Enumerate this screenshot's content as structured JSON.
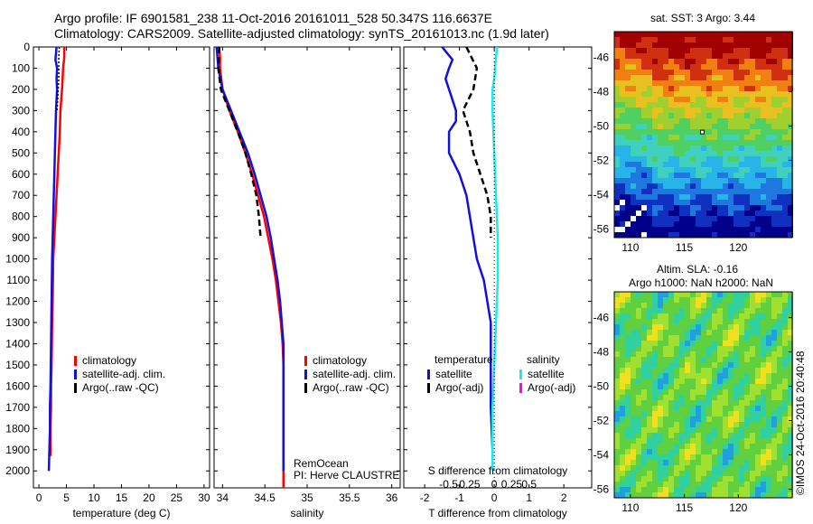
{
  "header": {
    "line1": "Argo profile: IF 6901581_238 11-Oct-2016 20161011_528 50.347S 116.6637E",
    "line2": "Climatology: CARS2009. Satellite-adjusted climatology: synTS_20161013.nc (1.9d later)"
  },
  "colors": {
    "climatology": "#ff0000",
    "satellite": "#0000ff",
    "argo": "#000000",
    "sal_sat": "#00e5e5",
    "sal_argo": "#ff00ff"
  },
  "chart_data": [
    {
      "type": "line",
      "id": "temperature",
      "xlabel": "temperature (deg C)",
      "ylabel": "",
      "xlim": [
        -1,
        31
      ],
      "ylim": [
        2080,
        0
      ],
      "xticks": [
        0,
        5,
        10,
        15,
        20,
        25,
        30
      ],
      "yticks": [
        0,
        100,
        200,
        300,
        400,
        500,
        600,
        700,
        800,
        900,
        1000,
        1100,
        1200,
        1300,
        1400,
        1500,
        1600,
        1700,
        1800,
        1900,
        2000
      ],
      "legend": [
        "climatology",
        "satellite-adj. clim.",
        "Argo(..raw -QC)"
      ],
      "series": [
        {
          "name": "climatology",
          "color": "red",
          "x": [
            4.6,
            4.6,
            4.4,
            4.2,
            3.9,
            3.8,
            3.6,
            3.4,
            3.2,
            3.0,
            2.8,
            2.6,
            2.5,
            2.4,
            2.3,
            2.2,
            2.2,
            2.1,
            2.1
          ],
          "y": [
            0,
            50,
            100,
            200,
            300,
            400,
            500,
            600,
            700,
            800,
            900,
            1000,
            1200,
            1300,
            1500,
            1600,
            1700,
            1800,
            1930
          ]
        },
        {
          "name": "satellite-adj. clim.",
          "color": "blue",
          "x": [
            3.2,
            3.0,
            3.3,
            3.2,
            3.3,
            3.1,
            3.0,
            2.9,
            2.8,
            2.7,
            2.6,
            2.5,
            2.4,
            2.3,
            2.2,
            2.1,
            2.0,
            2.0,
            1.9,
            1.8
          ],
          "y": [
            0,
            60,
            100,
            150,
            200,
            300,
            400,
            500,
            600,
            700,
            800,
            900,
            1000,
            1200,
            1400,
            1600,
            1700,
            1800,
            1900,
            2000
          ]
        },
        {
          "name": "Argo(..raw -QC)",
          "color": "black",
          "style": "dotted",
          "x": [
            3.7,
            3.6,
            3.6,
            3.4,
            3.3
          ],
          "y": [
            0,
            50,
            150,
            250,
            300
          ]
        }
      ]
    },
    {
      "type": "line",
      "id": "salinity",
      "xlabel": "salinity",
      "ylabel": "",
      "xlim": [
        33.9,
        36.1
      ],
      "ylim": [
        2080,
        0
      ],
      "xticks": [
        34,
        34.5,
        35,
        35.5,
        36
      ],
      "legend": [
        "climatology",
        "satellite-adj. clim.",
        "Argo(..raw -QC)"
      ],
      "annotation": [
        "RemOcean",
        "PI: Herve CLAUSTRE"
      ],
      "series": [
        {
          "name": "climatology",
          "color": "red",
          "x": [
            33.96,
            33.97,
            33.97,
            34.0,
            34.08,
            34.18,
            34.27,
            34.35,
            34.42,
            34.49,
            34.54,
            34.59,
            34.63,
            34.66,
            34.69,
            34.71,
            34.72,
            34.72,
            34.72,
            34.72
          ],
          "y": [
            0,
            50,
            100,
            200,
            300,
            400,
            500,
            600,
            700,
            800,
            900,
            1000,
            1100,
            1200,
            1300,
            1400,
            1500,
            1700,
            1900,
            2080
          ]
        },
        {
          "name": "satellite-adj. clim.",
          "color": "blue",
          "x": [
            33.93,
            33.94,
            33.95,
            34.0,
            34.1,
            34.2,
            34.3,
            34.38,
            34.45,
            34.52,
            34.57,
            34.61,
            34.65,
            34.68,
            34.7,
            34.72,
            34.72,
            34.72,
            34.72
          ],
          "y": [
            0,
            50,
            100,
            200,
            300,
            400,
            500,
            600,
            700,
            800,
            900,
            1000,
            1100,
            1200,
            1300,
            1400,
            1500,
            1700,
            2000
          ]
        },
        {
          "name": "Argo(..raw -QC)",
          "color": "black",
          "style": "dashed",
          "x": [
            33.96,
            33.95,
            33.98,
            34.08,
            34.18,
            34.27,
            34.34,
            34.4,
            34.43,
            34.45
          ],
          "y": [
            0,
            100,
            200,
            300,
            400,
            500,
            600,
            700,
            800,
            900
          ]
        }
      ]
    },
    {
      "type": "line",
      "id": "difference",
      "xlabel": "T difference from climatology",
      "xlabel2": "S difference from climatology",
      "xlim": [
        -2.6,
        2.8
      ],
      "ylim": [
        2080,
        0
      ],
      "xticks": [
        -2,
        -1,
        0,
        1,
        2
      ],
      "x2ticks": [
        "-0.5",
        "-0.25",
        "0",
        "0.25",
        "0.5"
      ],
      "legend_left_title": "temperature",
      "legend_right_title": "salinity",
      "legend": [
        "satellite",
        "Argo(-adj)",
        "satellite",
        "Argo(-adj)"
      ],
      "series": [
        {
          "name": "satellite",
          "color": "blue",
          "x": [
            -1.5,
            -1.2,
            -1.3,
            -1.4,
            -1.3,
            -1.1,
            -1.1,
            -1.3,
            -1.3,
            -1.0,
            -0.8,
            -0.7,
            -0.6,
            -0.5,
            -0.3,
            -0.2,
            -0.1,
            -0.1,
            -0.1,
            -0.05,
            -0.05
          ],
          "y": [
            0,
            60,
            100,
            150,
            200,
            300,
            350,
            400,
            500,
            600,
            700,
            800,
            900,
            1000,
            1100,
            1200,
            1300,
            1500,
            1700,
            1900,
            2000
          ]
        },
        {
          "name": "Argo(-adj)",
          "color": "black",
          "style": "dashed",
          "x": [
            -0.8,
            -0.5,
            -0.6,
            -0.9,
            -0.7,
            -0.6,
            -0.4,
            -0.2,
            -0.1,
            -0.1
          ],
          "y": [
            0,
            100,
            200,
            300,
            400,
            500,
            600,
            700,
            800,
            900
          ]
        },
        {
          "name": "satellite",
          "color": "cyan",
          "x": [
            0.08,
            0.05,
            0.0,
            -0.05,
            -0.05,
            0.0,
            0.05,
            0.1,
            0.1,
            0.05,
            0.0,
            -0.05,
            -0.05,
            -0.05
          ],
          "y": [
            0,
            50,
            150,
            200,
            300,
            500,
            700,
            900,
            1100,
            1300,
            1500,
            1700,
            1900,
            2000
          ]
        }
      ]
    },
    {
      "type": "heatmap",
      "id": "sst_map",
      "title": "sat. SST: 3 Argo: 3.44",
      "xticks": [
        110,
        115,
        120
      ],
      "yticks": [
        -46,
        -48,
        -50,
        -52,
        -54,
        -56
      ],
      "xlim": [
        108.5,
        125
      ],
      "ylim": [
        -56.5,
        -44.5
      ],
      "argo_position": [
        116.66,
        -50.35
      ]
    },
    {
      "type": "heatmap",
      "id": "sla_map",
      "title": "Altim. SLA: -0.16",
      "subtitle": "Argo h1000: NaN h2000: NaN",
      "xticks": [
        110,
        115,
        120
      ],
      "yticks": [
        -46,
        -48,
        -50,
        -52,
        -54,
        -56
      ],
      "xlim": [
        108.5,
        125
      ],
      "ylim": [
        -56.5,
        -44.5
      ]
    }
  ],
  "watermark": "©IMOS 24-Oct-2016 20:40:48"
}
